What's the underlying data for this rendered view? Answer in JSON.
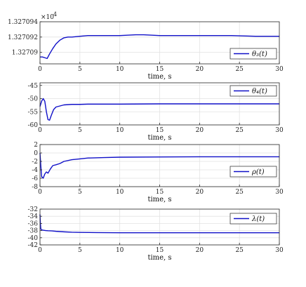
{
  "chart_data": [
    {
      "type": "line",
      "legend": "θ₃(t)",
      "legend_position": "bottom-right",
      "grid": true,
      "xlabel": "time, s",
      "xlim": [
        0,
        30
      ],
      "x_ticks": [
        0,
        5,
        10,
        15,
        20,
        25,
        30
      ],
      "ylim": [
        1.3270885,
        1.327094
      ],
      "y_ticks": [
        1.327094,
        1.327092,
        1.32709
      ],
      "y_tick_labels": [
        "1.327094",
        "1.327092",
        "1.32709"
      ],
      "y_multiplier": "×10^4",
      "series": [
        {
          "color": "#1010c8",
          "x": [
            0,
            0.3,
            0.6,
            0.9,
            1.2,
            1.6,
            2.0,
            2.5,
            3.0,
            3.5,
            4.0,
            5.0,
            6.0,
            8.0,
            10.0,
            12.0,
            13.0,
            15.0,
            18.0,
            20.0,
            24.0,
            27.0,
            30.0
          ],
          "y": [
            1.3270894,
            1.3270894,
            1.3270893,
            1.3270892,
            1.3270898,
            1.3270905,
            1.3270911,
            1.3270916,
            1.3270919,
            1.327092,
            1.327092,
            1.3270921,
            1.3270922,
            1.3270922,
            1.3270922,
            1.3270923,
            1.3270923,
            1.3270922,
            1.3270922,
            1.3270922,
            1.3270922,
            1.3270921,
            1.3270921
          ]
        }
      ]
    },
    {
      "type": "line",
      "legend": "θ₄(t)",
      "legend_position": "top-right",
      "grid": true,
      "xlabel": "time, s",
      "xlim": [
        0,
        30
      ],
      "x_ticks": [
        0,
        5,
        10,
        15,
        20,
        25,
        30
      ],
      "ylim": [
        -60,
        -44
      ],
      "y_ticks": [
        -45,
        -50,
        -55,
        -60
      ],
      "y_tick_labels": [
        "-45",
        "-50",
        "-55",
        "-60"
      ],
      "series": [
        {
          "color": "#1010c8",
          "x": [
            0,
            0.2,
            0.4,
            0.6,
            0.8,
            1.0,
            1.2,
            1.4,
            1.7,
            2.0,
            2.5,
            3.0,
            4.0,
            5.0,
            6.0,
            8.0,
            10.0,
            15.0,
            20.0,
            25.0,
            30.0
          ],
          "y": [
            -53,
            -51,
            -50,
            -51,
            -55,
            -58,
            -58.2,
            -56.5,
            -54.2,
            -53.2,
            -52.8,
            -52.4,
            -52.2,
            -52.2,
            -52.1,
            -52.1,
            -52.1,
            -52.0,
            -52.0,
            -52.0,
            -52.0
          ]
        }
      ]
    },
    {
      "type": "line",
      "legend": "ρ(t)",
      "legend_position": "bottom-right",
      "grid": true,
      "xlabel": "time, s",
      "xlim": [
        0,
        30
      ],
      "x_ticks": [
        0,
        5,
        10,
        15,
        20,
        25,
        30
      ],
      "ylim": [
        -8,
        2
      ],
      "y_ticks": [
        2,
        0,
        -2,
        -4,
        -6,
        -8
      ],
      "y_tick_labels": [
        "2",
        "0",
        "-2",
        "-4",
        "-6",
        "-8"
      ],
      "series": [
        {
          "color": "#1010c8",
          "x": [
            0,
            0.1,
            0.2,
            0.4,
            0.6,
            0.8,
            1.0,
            1.3,
            1.6,
            2.0,
            2.5,
            3.0,
            4.0,
            5.0,
            6.0,
            8.0,
            10.0,
            15.0,
            20.0,
            25.0,
            30.0
          ],
          "y": [
            0,
            -3,
            -5.6,
            -6,
            -5,
            -4.5,
            -4.8,
            -3.8,
            -3.0,
            -2.8,
            -2.5,
            -2.0,
            -1.6,
            -1.4,
            -1.2,
            -1.1,
            -1.0,
            -0.95,
            -0.9,
            -0.9,
            -0.9
          ]
        }
      ]
    },
    {
      "type": "line",
      "legend": "λ(t)",
      "legend_position": "top-right",
      "grid": true,
      "xlabel": "time, s",
      "xlim": [
        0,
        30
      ],
      "x_ticks": [
        0,
        5,
        10,
        15,
        20,
        25,
        30
      ],
      "ylim": [
        -42,
        -32
      ],
      "y_ticks": [
        -32,
        -34,
        -36,
        -38,
        -40,
        -42
      ],
      "y_tick_labels": [
        "-32",
        "-34",
        "-36",
        "-38",
        "-40",
        "-42"
      ],
      "series": [
        {
          "color": "#1010c8",
          "x": [
            0,
            0.05,
            0.1,
            0.2,
            0.4,
            0.7,
            1.0,
            1.5,
            2.0,
            3.0,
            4.0,
            5.0,
            7.0,
            10.0,
            15.0,
            20.0,
            25.0,
            30.0
          ],
          "y": [
            -33.5,
            -36,
            -37.5,
            -37.8,
            -37.9,
            -38.0,
            -38.05,
            -38.1,
            -38.2,
            -38.35,
            -38.45,
            -38.5,
            -38.55,
            -38.6,
            -38.6,
            -38.6,
            -38.6,
            -38.6
          ]
        }
      ]
    }
  ]
}
